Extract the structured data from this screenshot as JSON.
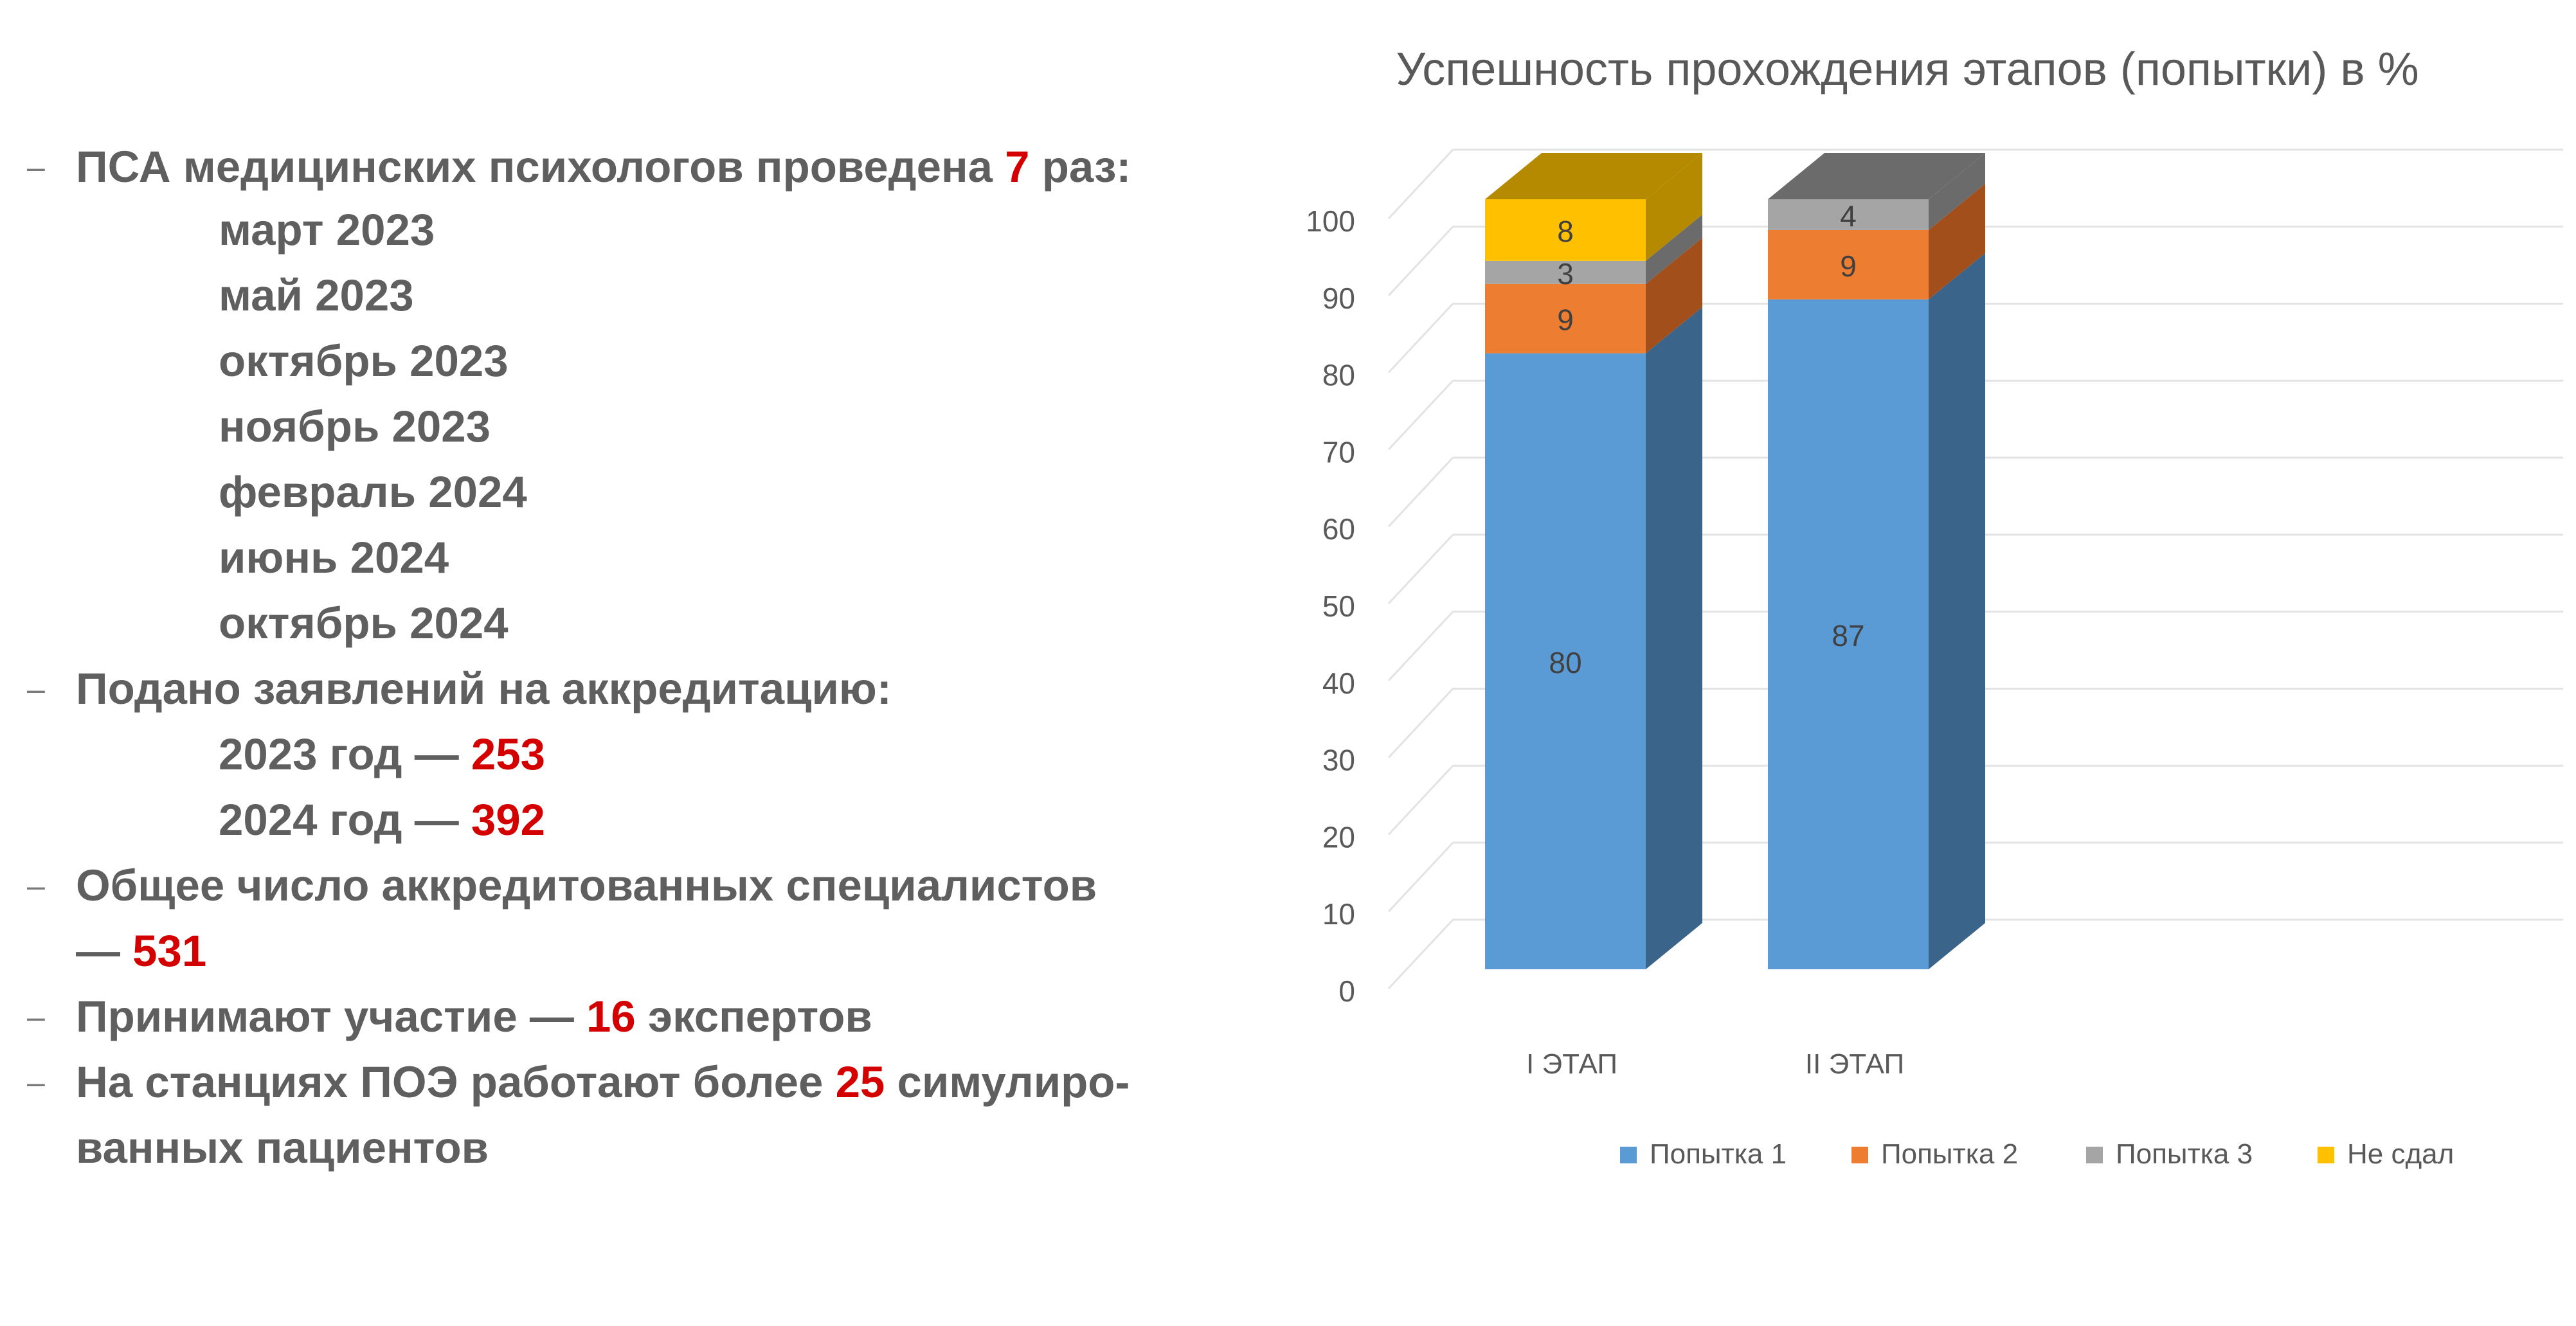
{
  "left_panel": {
    "bullet_glyph": "–",
    "item1": {
      "pre": "ПСА медицинских психологов проведена ",
      "highlight": "7",
      "post": " раз:"
    },
    "dates": [
      "март 2023",
      "май 2023",
      "октябрь 2023",
      "ноябрь 2023",
      "февраль 2024",
      "июнь 2024",
      "октябрь 2024"
    ],
    "item2": {
      "text": "Подано заявлений на аккредитацию:"
    },
    "applications": [
      {
        "label": "2023 год — ",
        "value": "253"
      },
      {
        "label": "2024 год — ",
        "value": "392"
      }
    ],
    "item3": {
      "line1": "Общее число аккредитованных специалистов",
      "line2_pre": "— ",
      "value": "531"
    },
    "item4": {
      "pre": "Принимают участие — ",
      "value": "16",
      "post": " экспертов"
    },
    "item5": {
      "pre": "На станциях ПОЭ работают более ",
      "value": "25",
      "post": " симулиро-",
      "line2": "ванных пациентов"
    },
    "colors": {
      "text": "#5f5f5f",
      "highlight": "#d40000"
    }
  },
  "chart_data": {
    "type": "bar",
    "stacked": true,
    "three_d": true,
    "title": "Успешность прохождения этапов (попытки) в %",
    "categories": [
      "I ЭТАП",
      "II ЭТАП"
    ],
    "series": [
      {
        "name": "Попытка 1",
        "values": [
          80,
          87
        ],
        "color": "#5b9bd5",
        "side_color": "#3a6489"
      },
      {
        "name": "Попытка 2",
        "values": [
          9,
          9
        ],
        "color": "#ed7d31",
        "side_color": "#a24f1b"
      },
      {
        "name": "Попытка 3",
        "values": [
          3,
          4
        ],
        "color": "#a5a5a5",
        "side_color": "#6b6b6b"
      },
      {
        "name": "Не сдал",
        "values": [
          8,
          0
        ],
        "color": "#ffc000",
        "side_color": "#b58a00"
      }
    ],
    "data_labels": [
      [
        "80",
        "87"
      ],
      [
        "9",
        "9"
      ],
      [
        "3",
        "4"
      ],
      [
        "8",
        ""
      ]
    ],
    "ylim": [
      0,
      100
    ],
    "yticks": [
      0,
      10,
      20,
      30,
      40,
      50,
      60,
      70,
      80,
      90,
      100
    ],
    "grid": true,
    "legend": "bottom"
  }
}
